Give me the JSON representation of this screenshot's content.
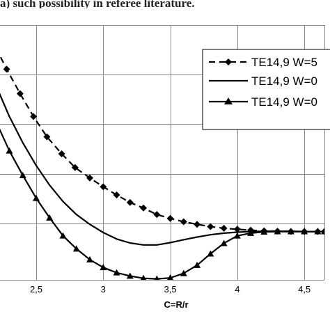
{
  "caption_fragment": "a) such possibility in referee literature.",
  "chart_data": {
    "type": "line",
    "title": "",
    "xlabel": "C=R/r",
    "ylabel": "",
    "xlim": [
      2.23,
      4.65
    ],
    "ylim": [
      0,
      7.8
    ],
    "x_ticks": [
      2.5,
      3,
      3.5,
      4,
      4.5
    ],
    "x_tick_labels": [
      "2,5",
      "3",
      "3,5",
      "4",
      "4,5"
    ],
    "grid": true,
    "legend_position": "right",
    "series": [
      {
        "name": "TE14,9 W=5",
        "style": "dashed",
        "marker": "diamond",
        "x": [
          2.2,
          2.28,
          2.38,
          2.48,
          2.58,
          2.69,
          2.79,
          2.9,
          3.0,
          3.1,
          3.2,
          3.3,
          3.4,
          3.5,
          3.6,
          3.7,
          3.8,
          3.9,
          4.0,
          4.1,
          4.2,
          4.3,
          4.4,
          4.5,
          4.6,
          4.65
        ],
        "y": [
          7.1,
          6.45,
          5.7,
          5.0,
          4.38,
          3.86,
          3.44,
          3.12,
          2.85,
          2.6,
          2.37,
          2.2,
          2.0,
          1.88,
          1.78,
          1.7,
          1.63,
          1.58,
          1.55,
          1.52,
          1.5,
          1.49,
          1.48,
          1.48,
          1.48,
          1.48
        ]
      },
      {
        "name": "TE14,9 W=0",
        "style": "solid",
        "marker": "none",
        "x": [
          2.2,
          2.3,
          2.4,
          2.5,
          2.6,
          2.7,
          2.8,
          2.9,
          3.0,
          3.1,
          3.2,
          3.3,
          3.4,
          3.5,
          3.6,
          3.7,
          3.8,
          3.9,
          4.0,
          4.1,
          4.2,
          4.3,
          4.4,
          4.5,
          4.65
        ],
        "y": [
          5.95,
          5.0,
          4.2,
          3.5,
          2.9,
          2.4,
          2.0,
          1.7,
          1.45,
          1.25,
          1.13,
          1.07,
          1.07,
          1.14,
          1.23,
          1.31,
          1.38,
          1.43,
          1.46,
          1.48,
          1.49,
          1.49,
          1.49,
          1.48,
          1.48
        ]
      },
      {
        "name": "TE14,9 W=0",
        "style": "solid",
        "marker": "triangle",
        "x": [
          2.2,
          2.3,
          2.4,
          2.5,
          2.6,
          2.7,
          2.8,
          2.9,
          3.0,
          3.1,
          3.2,
          3.3,
          3.4,
          3.5,
          3.6,
          3.7,
          3.8,
          3.9,
          4.0,
          4.1,
          4.2,
          4.3,
          4.4,
          4.5,
          4.6,
          4.65
        ],
        "y": [
          4.85,
          3.95,
          3.2,
          2.5,
          1.9,
          1.35,
          0.95,
          0.62,
          0.38,
          0.22,
          0.12,
          0.05,
          0.03,
          0.06,
          0.2,
          0.45,
          0.8,
          1.12,
          1.35,
          1.43,
          1.47,
          1.48,
          1.48,
          1.48,
          1.48,
          1.48
        ]
      }
    ]
  }
}
